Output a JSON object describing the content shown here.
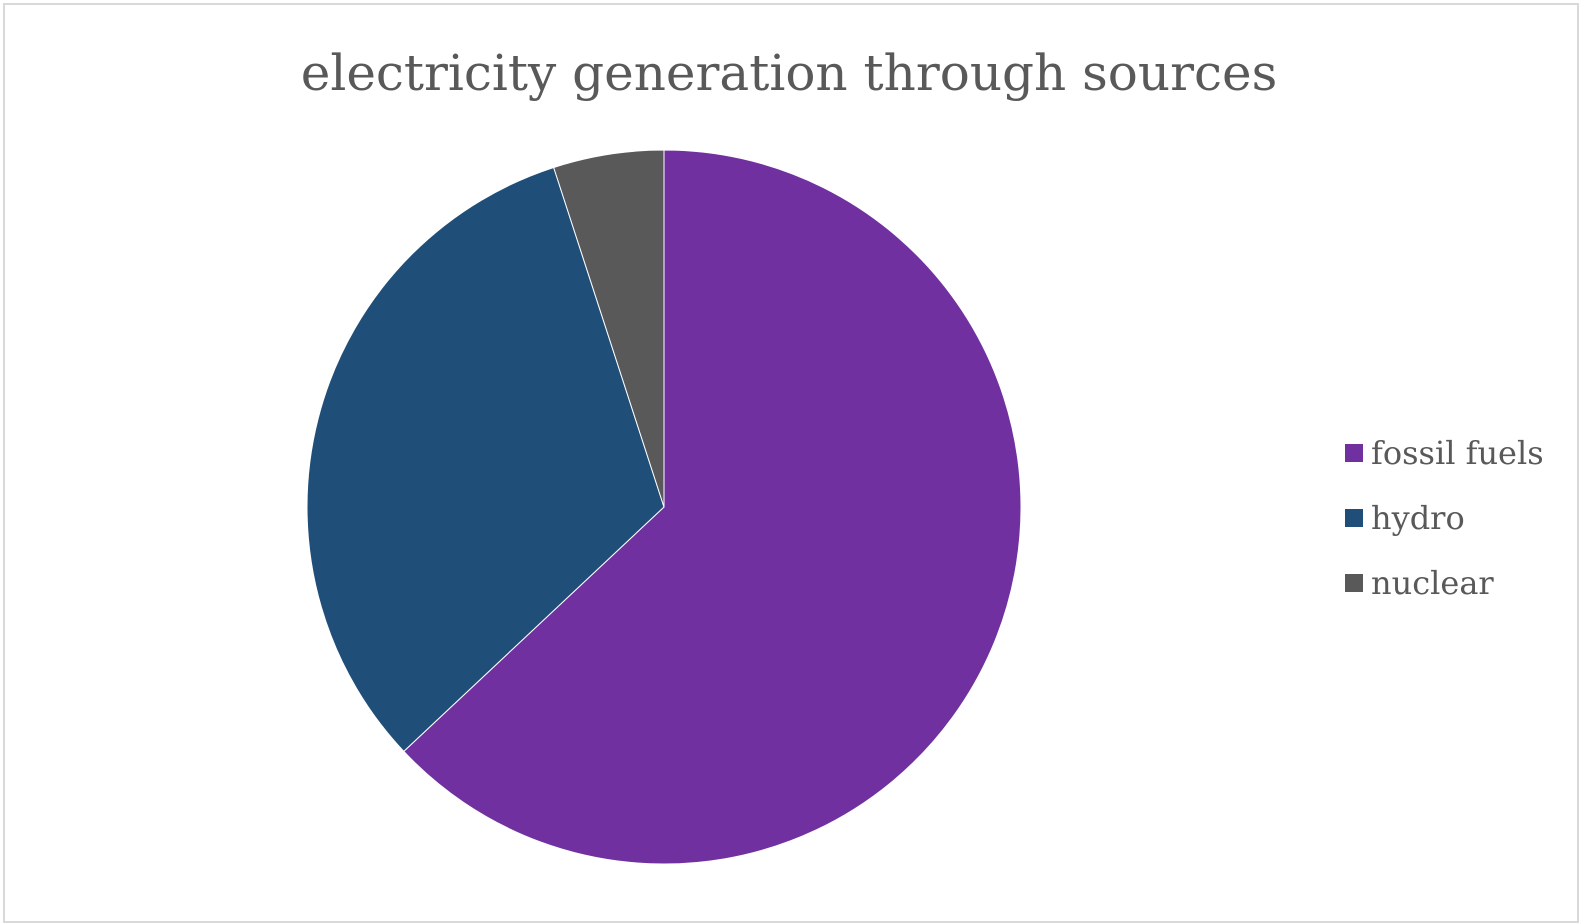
{
  "chart_data": {
    "type": "pie",
    "title": "electricity generation through sources",
    "categories": [
      "fossil fuels",
      "hydro",
      "nuclear"
    ],
    "values": [
      63,
      32,
      5
    ],
    "colors": [
      "#7030a0",
      "#1f4e79",
      "#595959"
    ],
    "start_angle_deg": 0,
    "direction": "clockwise",
    "legend_position": "right"
  }
}
